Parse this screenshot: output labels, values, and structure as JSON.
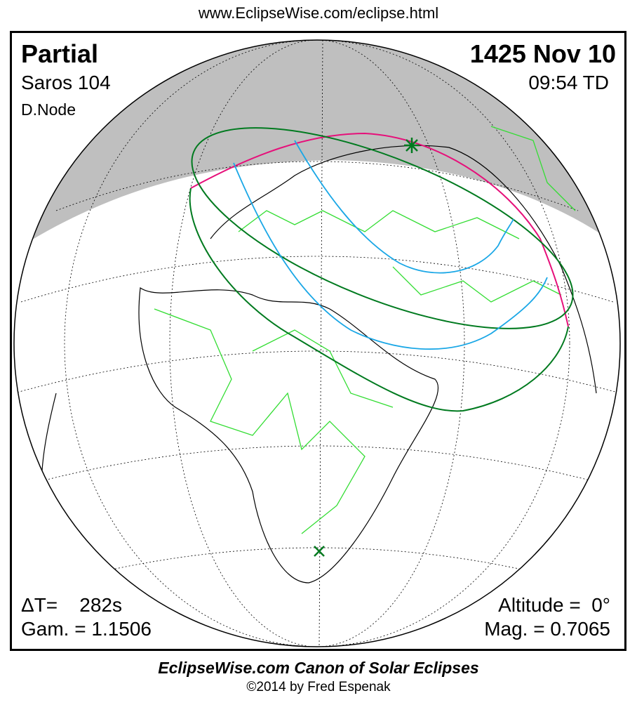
{
  "header_url": "www.EclipseWise.com/eclipse.html",
  "eclipse": {
    "type": "Partial",
    "saros": "Saros 104",
    "node": "D.Node",
    "date": "1425 Nov 10",
    "time": "09:54 TD",
    "delta_t": "ΔT=    282s",
    "gamma": "Gam. = 1.1506",
    "altitude": "Altitude =  0°",
    "magnitude": "Mag. = 0.7065"
  },
  "footer": {
    "title": "EclipseWise.com Canon of Solar Eclipses",
    "copyright": "©2014 by Fred Espenak"
  },
  "colors": {
    "night": "#bfbfbf",
    "borders": "#33dd33",
    "penumbra_limits": "#007a1f",
    "magnitude_curves": "#1aa7e6",
    "sunrise_line": "#e6107a",
    "greatest_eclipse_marker": "#007a1f"
  },
  "markers": {
    "greatest_eclipse": "star-icon",
    "sub_solar": "x-icon"
  }
}
